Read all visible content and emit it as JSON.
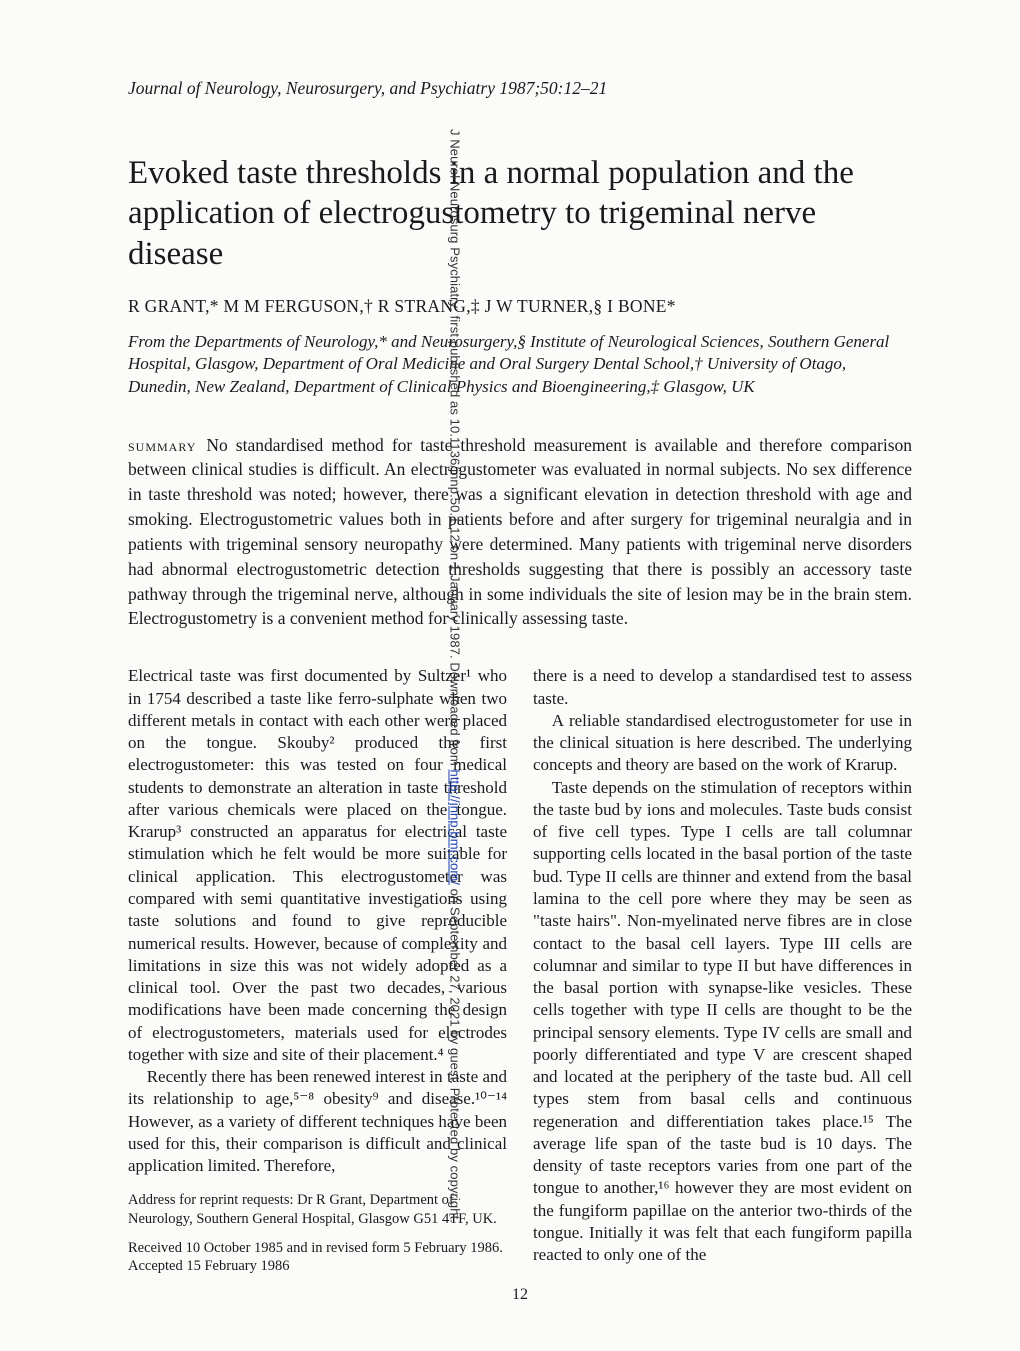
{
  "journal_ref": "Journal of Neurology, Neurosurgery, and Psychiatry 1987;50:12–21",
  "title": "Evoked taste thresholds in a normal population and the application of electrogustometry to trigeminal nerve disease",
  "authors": "R GRANT,*  M M FERGUSON,†  R STRANG,‡  J W TURNER,§  I BONE*",
  "affil": "From the Departments of Neurology,* and Neurosurgery,§ Institute of Neurological Sciences, Southern General Hospital, Glasgow, Department of Oral Medicine and Oral Surgery Dental School,† University of Otago, Dunedin, New Zealand, Department of Clinical Physics and Bioengineering,‡ Glasgow, UK",
  "summary_lead": "summary",
  "summary": "No standardised method for taste threshold measurement is available and therefore comparison between clinical studies is difficult. An electrogustometer was evaluated in normal subjects. No sex difference in taste threshold was noted; however, there was a significant elevation in detection threshold with age and smoking. Electrogustometric values both in patients before and after surgery for trigeminal neuralgia and in patients with trigeminal sensory neuropathy were determined. Many patients with trigeminal nerve disorders had abnormal electrogustometric detection thresholds suggesting that there is possibly an accessory taste pathway through the trigeminal nerve, although in some individuals the site of lesion may be in the brain stem. Electrogustometry is a convenient method for clinically assessing taste.",
  "left": {
    "p1": "Electrical taste was first documented by Sultzer¹ who in 1754 described a taste like ferro-sulphate when two different metals in contact with each other were placed on the tongue. Skouby² produced the first electrogustometer: this was tested on four medical students to demonstrate an alteration in taste threshold after various chemicals were placed on the tongue. Krarup³ constructed an apparatus for electrical taste stimulation which he felt would be more suitable for clinical application. This electrogustometer was compared with semi quantitative investigations using taste solutions and found to give reproducible numerical results. However, because of complexity and limitations in size this was not widely adopted as a clinical tool. Over the past two decades, various modifications have been made concerning the design of electrogustometers, materials used for electrodes together with size and site of their placement.⁴",
    "p2": "Recently there has been renewed interest in taste and its relationship to age,⁵⁻⁸ obesity⁹ and disease.¹⁰⁻¹⁴ However, as a variety of different techniques have been used for this, their comparison is difficult and clinical application limited. Therefore,",
    "fn1": "Address for reprint requests: Dr R Grant, Department of Neurology, Southern General Hospital, Glasgow G51 4TF, UK.",
    "fn2": "Received 10 October 1985 and in revised form 5 February 1986. Accepted 15 February 1986"
  },
  "right": {
    "p1": "there is a need to develop a standardised test to assess taste.",
    "p2": "A reliable standardised electrogustometer for use in the clinical situation is here described. The underlying concepts and theory are based on the work of Krarup.",
    "p3": "Taste depends on the stimulation of receptors within the taste bud by ions and molecules. Taste buds consist of five cell types. Type I cells are tall columnar supporting cells located in the basal portion of the taste bud. Type II cells are thinner and extend from the basal lamina to the cell pore where they may be seen as \"taste hairs\". Non-myelinated nerve fibres are in close contact to the basal cell layers. Type III cells are columnar and similar to type II but have differences in the basal portion with synapse-like vesicles. These cells together with type II cells are thought to be the principal sensory elements. Type IV cells are small and poorly differentiated and type V are crescent shaped and located at the periphery of the taste bud. All cell types stem from basal cells and continuous regeneration and differentiation takes place.¹⁵ The average life span of the taste bud is 10 days. The density of taste receptors varies from one part of the tongue to another,¹⁶ however they are most evident on the fungiform papillae on the anterior two-thirds of the tongue. Initially it was felt that each fungiform papilla reacted to only one of the"
  },
  "page_number": "12",
  "side_note_prefix": "J Neurol Neurosurg Psychiatry: first published as 10.1136/jnnp.50.1.12 on 1 January 1987. Downloaded from ",
  "side_note_link": "http://jnnp.bmj.com/",
  "side_note_suffix": " on September 27, 2021 by guest. Protected by copyright."
}
